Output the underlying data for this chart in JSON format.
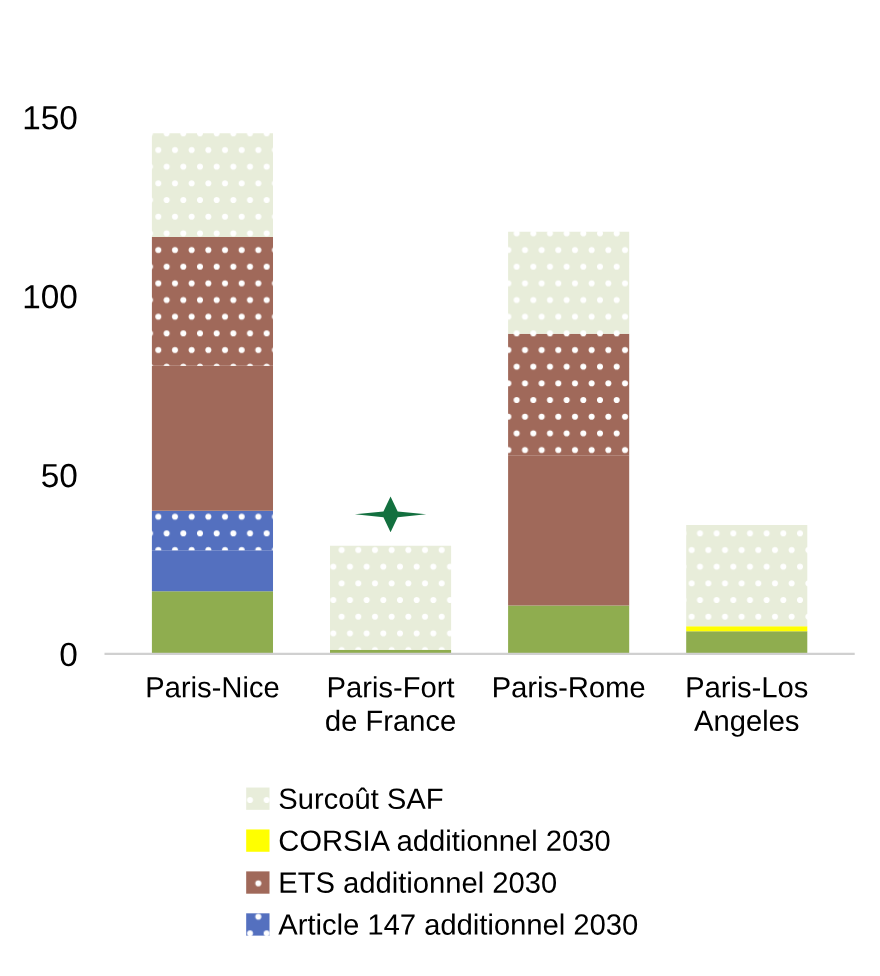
{
  "chart_data": {
    "type": "bar",
    "stacked": true,
    "categories": [
      "Paris-Nice",
      "Paris-Fort de France",
      "Paris-Rome",
      "Paris-Los Angeles"
    ],
    "series": [
      {
        "color": "#8fad4f",
        "values": [
          17.5,
          1.2,
          13.5,
          6.3
        ]
      },
      {
        "color": "#5470bf",
        "values": [
          11.5,
          0,
          0,
          0
        ]
      },
      {
        "name": "Article 147 additionnel 2030",
        "color": "#5470bf",
        "values": [
          11,
          0,
          0,
          0
        ]
      },
      {
        "color": "#a0695a",
        "values": [
          40.5,
          0,
          42,
          0
        ]
      },
      {
        "name": "ETS additionnel 2030",
        "color": "#a0695a",
        "values": [
          36,
          0,
          34,
          0
        ]
      },
      {
        "name": "CORSIA additionnel 2030",
        "color": "#ffff00",
        "values": [
          0,
          0,
          0,
          1.4
        ]
      },
      {
        "name": "Surcoût SAF",
        "color": "#e8edda",
        "values": [
          29,
          29,
          28.5,
          28.3
        ]
      }
    ],
    "ylim": [
      0,
      150
    ],
    "yticks": [
      0,
      50,
      100,
      150
    ],
    "grid": false,
    "legend": "bottom"
  }
}
